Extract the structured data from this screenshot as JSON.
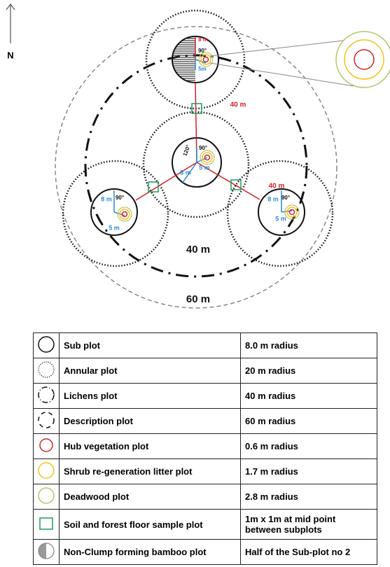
{
  "compass": {
    "label": "N"
  },
  "diagram": {
    "labels": [
      "8 m",
      "90°",
      "5m",
      "40 m",
      "120°",
      "90°",
      "8 m",
      "5 m",
      "8 m",
      "90°",
      "5 m",
      "40 m",
      "8 m",
      "90°",
      "5 m",
      "40 m",
      "60 m"
    ]
  },
  "legend": {
    "rows": [
      {
        "plot": "Sub plot",
        "size": "8.0 m radius"
      },
      {
        "plot": "Annular plot",
        "size": "20 m radius"
      },
      {
        "plot": "Lichens plot",
        "size": "40 m radius"
      },
      {
        "plot": "Description plot",
        "size": "60 m radius"
      },
      {
        "plot": "Hub vegetation plot",
        "size": "0.6 m radius"
      },
      {
        "plot": "Shrub re-generation litter plot",
        "size": "1.7 m radius"
      },
      {
        "plot": "Deadwood plot",
        "size": "2.8 m radius"
      },
      {
        "plot": "Soil and forest floor sample plot",
        "size": "1m x 1m at mid point between subplots"
      },
      {
        "plot": "Non-Clump forming bamboo plot",
        "size": "Half of the Sub-plot no 2"
      }
    ]
  }
}
